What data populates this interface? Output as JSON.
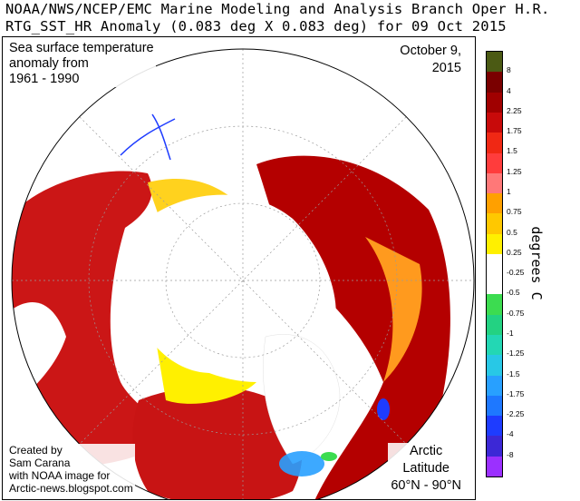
{
  "header": {
    "line1": "NOAA/NWS/NCEP/EMC Marine Modeling and Analysis Branch Oper H.R.",
    "line2": "RTG_SST_HR Anomaly (0.083 deg X 0.083 deg) for 09 Oct 2015"
  },
  "map": {
    "anomaly_title": [
      "Sea surface temperature",
      "anomaly from",
      "1961 - 1990"
    ],
    "date": [
      "October 9,",
      "2015"
    ],
    "credit": [
      "Created by",
      "Sam Carana",
      "with NOAA image for",
      "Arctic-news.blogspot.com"
    ],
    "region": [
      "Arctic",
      "Latitude",
      "60°N - 90°N"
    ]
  },
  "colorbar": {
    "title": "degrees C",
    "labels": [
      "-8",
      "-4",
      "-2.25",
      "-1.75",
      "-1.5",
      "-1.25",
      "-1",
      "-0.75",
      "-0.5",
      "-0.25",
      "0.25",
      "0.5",
      "0.75",
      "1",
      "1.25",
      "1.5",
      "1.75",
      "2.25",
      "4",
      "8"
    ],
    "colors": [
      "#9b30ff",
      "#3c28d6",
      "#1e3cff",
      "#1e78ff",
      "#28a0ff",
      "#28c8e6",
      "#23d7b4",
      "#23d282",
      "#3cdc50",
      "#ffffff",
      "#ffffff",
      "#fff000",
      "#ffc800",
      "#ffa000",
      "#ff7878",
      "#ff3c3c",
      "#f02814",
      "#c80a0a",
      "#a00000",
      "#7a0000",
      "#4b5a14"
    ]
  }
}
